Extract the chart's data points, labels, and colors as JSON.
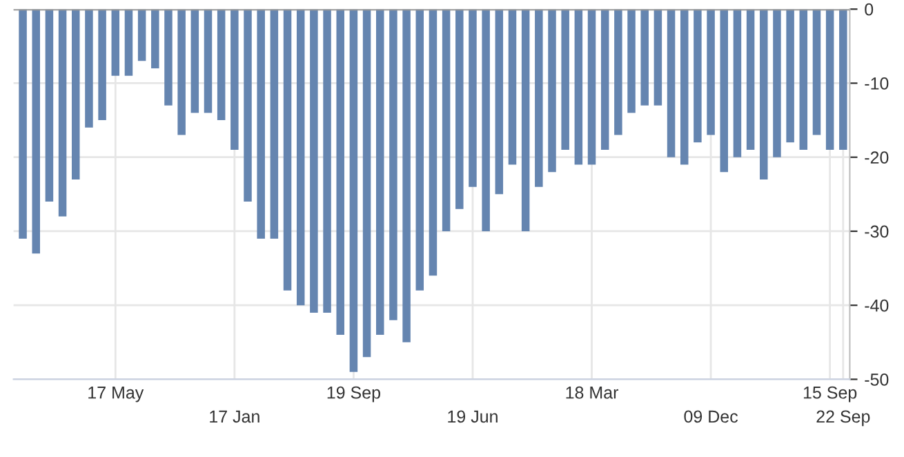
{
  "chart_data": {
    "type": "bar",
    "categories": [
      null,
      null,
      null,
      null,
      null,
      null,
      null,
      "17 May",
      null,
      null,
      null,
      null,
      null,
      null,
      null,
      null,
      "17 Jan",
      null,
      null,
      null,
      null,
      null,
      null,
      null,
      null,
      "19 Sep",
      null,
      null,
      null,
      null,
      null,
      null,
      null,
      null,
      "19 Jun",
      null,
      null,
      null,
      null,
      null,
      null,
      null,
      null,
      "18 Mar",
      null,
      null,
      null,
      null,
      null,
      null,
      null,
      null,
      "09 Dec",
      null,
      null,
      null,
      null,
      null,
      null,
      null,
      null,
      "15 Sep",
      "22 Sep"
    ],
    "values": [
      -31,
      -33,
      -26,
      -28,
      -23,
      -16,
      -15,
      -9,
      -9,
      -7,
      -8,
      -13,
      -17,
      -14,
      -14,
      -15,
      -19,
      -26,
      -31,
      -31,
      -38,
      -40,
      -41,
      -41,
      -44,
      -49,
      -47,
      -44,
      -42,
      -45,
      -38,
      -36,
      -30,
      -27,
      -24,
      -30,
      -25,
      -21,
      -30,
      -24,
      -22,
      -19,
      -21,
      -21,
      -19,
      -17,
      -14,
      -13,
      -13,
      -20,
      -21,
      -18,
      -17,
      -22,
      -20,
      -19,
      -23,
      -20,
      -18,
      -19,
      -17,
      -19,
      -19
    ],
    "color": "#6585b0",
    "ylim": [
      -50,
      0
    ],
    "yticks": [
      0,
      -10,
      -20,
      -30,
      -40,
      -50
    ],
    "grid": true
  }
}
